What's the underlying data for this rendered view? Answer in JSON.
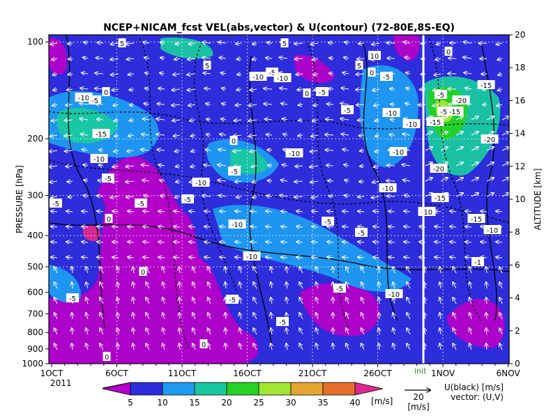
{
  "chart_data": {
    "type": "heatmap",
    "title": "NCEP+NICAM_fcst VEL(abs,vector) & U(contour)  (72-80E,8S-EQ)",
    "left_axis": {
      "label": "PRESSURE [hPa]",
      "ticks": [
        "100",
        "200",
        "300",
        "400",
        "500",
        "600",
        "700",
        "800",
        "900",
        "1000"
      ]
    },
    "right_axis": {
      "label": "ALTITUDE [km]",
      "ticks": [
        "0",
        "2",
        "4",
        "6",
        "8",
        "10",
        "12",
        "14",
        "16",
        "18",
        "20"
      ]
    },
    "x_axis": {
      "ticks": [
        "1OCT",
        "6OCT",
        "11OCT",
        "16OCT",
        "21OCT",
        "26OCT",
        "1NOV",
        "6NOV"
      ],
      "year": "2011",
      "init_label": "init"
    },
    "colorbar": {
      "ticks": [
        "5",
        "10",
        "15",
        "20",
        "25",
        "30",
        "35",
        "40"
      ],
      "unit": "[m/s]",
      "colors": [
        "#b400c8",
        "#2d2ddc",
        "#1e9bf0",
        "#19c8a0",
        "#23d223",
        "#a0e632",
        "#e6a532",
        "#e66e2d",
        "#dc288c"
      ]
    },
    "vector_ref": {
      "value": "20",
      "unit": "[m/s]"
    },
    "legend_notes": [
      "U(black) [m/s]",
      "vector: (U,V)"
    ],
    "contour_labels": [
      "5",
      "0",
      "-5",
      "-10",
      "-15",
      "-20"
    ]
  }
}
